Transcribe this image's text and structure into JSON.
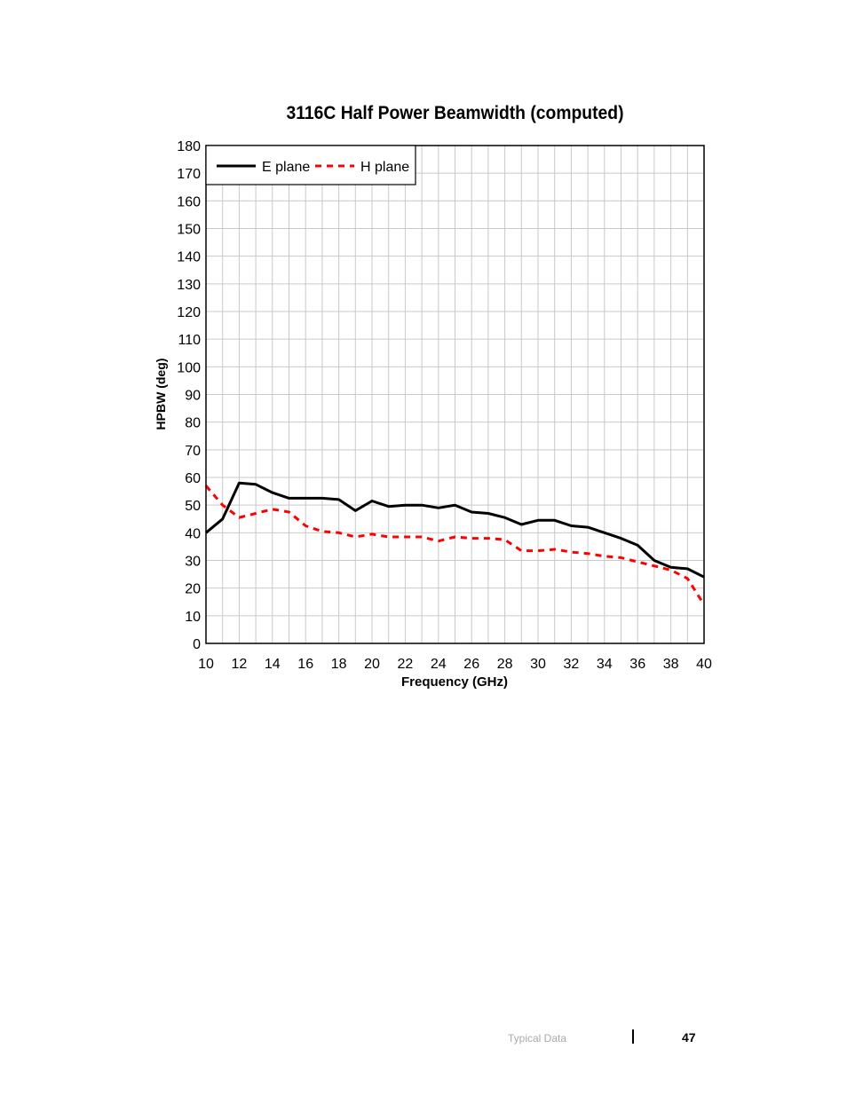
{
  "chart_data": {
    "type": "line",
    "title": "3116C Half Power Beamwidth (computed)",
    "xlabel": "Frequency (GHz)",
    "ylabel": "HPBW (deg)",
    "xlim": [
      10,
      40
    ],
    "ylim": [
      0,
      180
    ],
    "x_ticks": [
      10,
      12,
      14,
      16,
      18,
      20,
      22,
      24,
      26,
      28,
      30,
      32,
      34,
      36,
      38,
      40
    ],
    "y_ticks": [
      0,
      10,
      20,
      30,
      40,
      50,
      60,
      70,
      80,
      90,
      100,
      110,
      120,
      130,
      140,
      150,
      160,
      170,
      180
    ],
    "grid": true,
    "legend_position": "top-left",
    "series": [
      {
        "name": "E plane",
        "color": "#000000",
        "style": "solid",
        "x": [
          10,
          11,
          12,
          13,
          14,
          15,
          16,
          17,
          18,
          19,
          20,
          21,
          22,
          23,
          24,
          25,
          26,
          27,
          28,
          29,
          30,
          31,
          32,
          33,
          34,
          35,
          36,
          37,
          38,
          39,
          40
        ],
        "y": [
          40,
          45,
          58,
          57.5,
          54.5,
          52.5,
          52.5,
          52.5,
          52,
          48,
          51.5,
          49.5,
          50,
          50,
          49,
          50,
          47.5,
          47,
          45.5,
          43,
          44.5,
          44.5,
          42.5,
          42,
          40,
          38,
          35.5,
          30,
          27.5,
          27,
          24
        ]
      },
      {
        "name": "H plane",
        "color": "#ff0000",
        "style": "dashed",
        "x": [
          10,
          11,
          12,
          13,
          14,
          15,
          16,
          17,
          18,
          19,
          20,
          21,
          22,
          23,
          24,
          25,
          26,
          27,
          28,
          29,
          30,
          31,
          32,
          33,
          34,
          35,
          36,
          37,
          38,
          39,
          40
        ],
        "y": [
          57,
          50,
          45.5,
          47,
          48.5,
          47.5,
          42.5,
          40.5,
          40,
          38.5,
          39.5,
          38.5,
          38.5,
          38.5,
          37,
          38.5,
          38,
          38,
          37.5,
          33.5,
          33.5,
          34,
          33,
          32.5,
          31.5,
          31,
          29.5,
          28,
          26.5,
          23.5,
          14
        ]
      }
    ]
  },
  "footer": {
    "section": "Typical Data",
    "page_number": "47"
  }
}
